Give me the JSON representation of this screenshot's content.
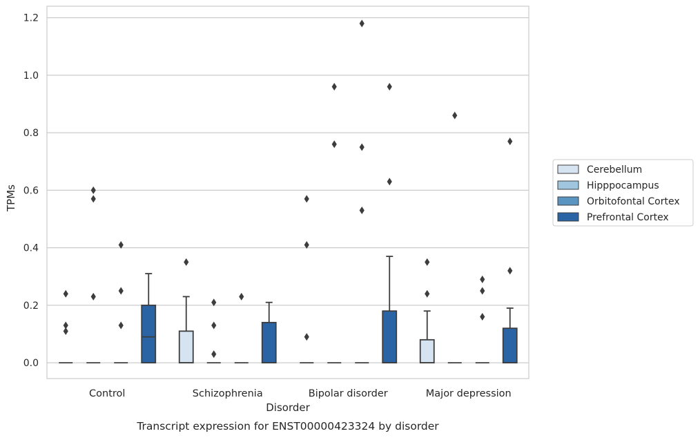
{
  "chart_data": {
    "type": "box",
    "title": "",
    "caption": "Transcript expression for ENST00000423324 by disorder",
    "xlabel": "Disorder",
    "ylabel": "TPMs",
    "ylim": [
      -0.055,
      1.24
    ],
    "yticks": [
      0.0,
      0.2,
      0.4,
      0.6,
      0.8,
      1.0,
      1.2
    ],
    "ytick_labels": [
      "0.0",
      "0.2",
      "0.4",
      "0.6",
      "0.8",
      "1.0",
      "1.2"
    ],
    "grid": true,
    "legend_position": "right",
    "categories": [
      "Control",
      "Schizophrenia",
      "Bipolar disorder",
      "Major depression"
    ],
    "series": [
      {
        "name": "Cerebellum",
        "color": "#d6e4f2",
        "boxes": [
          {
            "q1": 0,
            "median": 0,
            "q3": 0,
            "whisker_low": 0,
            "whisker_high": 0,
            "outliers": [
              0.24,
              0.13,
              0.11
            ]
          },
          {
            "q1": 0,
            "median": 0,
            "q3": 0.11,
            "whisker_low": 0,
            "whisker_high": 0.23,
            "outliers": [
              0.35
            ]
          },
          {
            "q1": 0,
            "median": 0,
            "q3": 0,
            "whisker_low": 0,
            "whisker_high": 0,
            "outliers": [
              0.57,
              0.41,
              0.09
            ]
          },
          {
            "q1": 0,
            "median": 0,
            "q3": 0.08,
            "whisker_low": 0,
            "whisker_high": 0.18,
            "outliers": [
              0.35,
              0.24
            ]
          }
        ]
      },
      {
        "name": "Hipppocampus",
        "color": "#a0c6df",
        "boxes": [
          {
            "q1": 0,
            "median": 0,
            "q3": 0,
            "whisker_low": 0,
            "whisker_high": 0,
            "outliers": [
              0.6,
              0.57,
              0.23
            ]
          },
          {
            "q1": 0,
            "median": 0,
            "q3": 0,
            "whisker_low": 0,
            "whisker_high": 0,
            "outliers": [
              0.21,
              0.13,
              0.03
            ]
          },
          {
            "q1": 0,
            "median": 0,
            "q3": 0,
            "whisker_low": 0,
            "whisker_high": 0,
            "outliers": [
              0.96,
              0.76
            ]
          },
          {
            "q1": 0,
            "median": 0,
            "q3": 0,
            "whisker_low": 0,
            "whisker_high": 0,
            "outliers": [
              0.86
            ]
          }
        ]
      },
      {
        "name": "Orbitofontal Cortex",
        "color": "#5a95c2",
        "boxes": [
          {
            "q1": 0,
            "median": 0,
            "q3": 0,
            "whisker_low": 0,
            "whisker_high": 0,
            "outliers": [
              0.41,
              0.25,
              0.13
            ]
          },
          {
            "q1": 0,
            "median": 0,
            "q3": 0,
            "whisker_low": 0,
            "whisker_high": 0,
            "outliers": [
              0.23
            ]
          },
          {
            "q1": 0,
            "median": 0,
            "q3": 0,
            "whisker_low": 0,
            "whisker_high": 0,
            "outliers": [
              1.18,
              0.75,
              0.53
            ]
          },
          {
            "q1": 0,
            "median": 0,
            "q3": 0,
            "whisker_low": 0,
            "whisker_high": 0,
            "outliers": [
              0.29,
              0.25,
              0.16
            ]
          }
        ]
      },
      {
        "name": "Prefrontal Cortex",
        "color": "#2a64a4",
        "boxes": [
          {
            "q1": 0,
            "median": 0.09,
            "q3": 0.2,
            "whisker_low": 0,
            "whisker_high": 0.31,
            "outliers": []
          },
          {
            "q1": 0,
            "median": 0,
            "q3": 0.14,
            "whisker_low": 0,
            "whisker_high": 0.21,
            "outliers": []
          },
          {
            "q1": 0,
            "median": 0,
            "q3": 0.18,
            "whisker_low": 0,
            "whisker_high": 0.37,
            "outliers": [
              0.96,
              0.63
            ]
          },
          {
            "q1": 0,
            "median": 0,
            "q3": 0.12,
            "whisker_low": 0,
            "whisker_high": 0.19,
            "outliers": [
              0.77,
              0.32
            ]
          }
        ]
      }
    ]
  }
}
